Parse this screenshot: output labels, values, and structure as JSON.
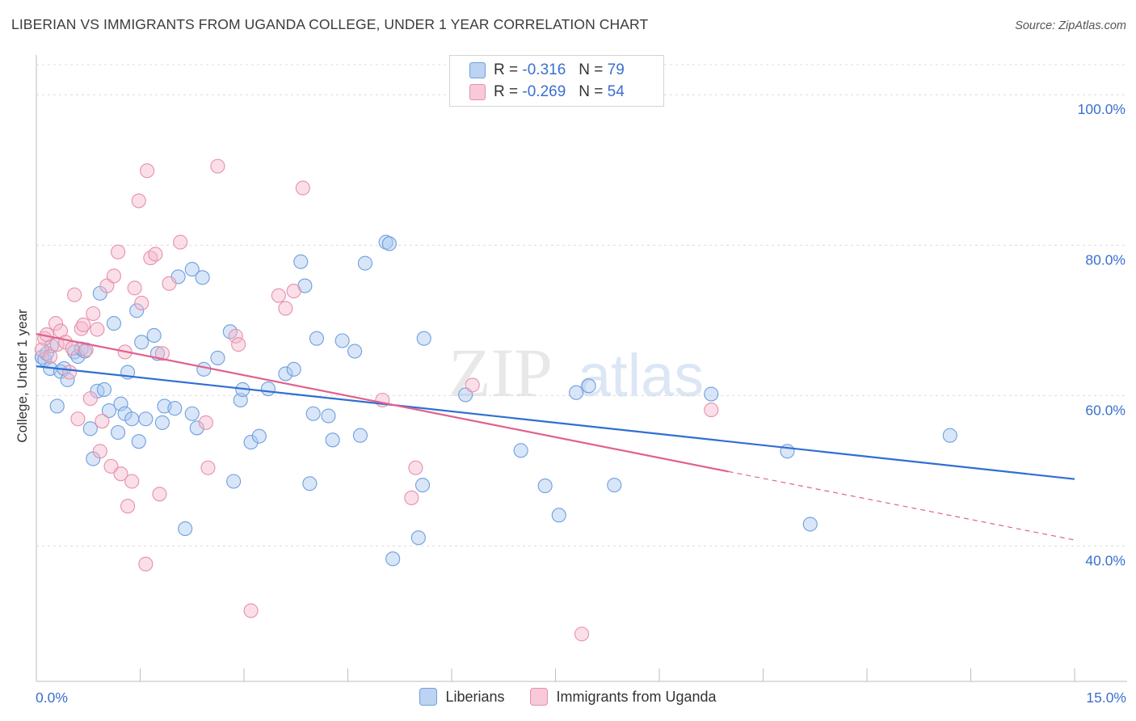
{
  "header": {
    "title": "LIBERIAN VS IMMIGRANTS FROM UGANDA COLLEGE, UNDER 1 YEAR CORRELATION CHART",
    "source": "Source: ZipAtlas.com"
  },
  "legend_top": {
    "rows": [
      {
        "r_label": "R =",
        "r_value": "-0.316",
        "n_label": "N =",
        "n_value": "79"
      },
      {
        "r_label": "R =",
        "r_value": "-0.269",
        "n_label": "N =",
        "n_value": "54"
      }
    ]
  },
  "watermark": {
    "zip": "ZIP",
    "atlas": "atlas"
  },
  "colors": {
    "blue_fill": "#a9c7ef",
    "blue_stroke": "#6e9fde",
    "blue_line": "#2f6fd1",
    "pink_fill": "#f5b7cb",
    "pink_stroke": "#e88fab",
    "pink_line": "#e0628c",
    "axis_text": "#3a6fd0",
    "grid": "#dcdcdc"
  },
  "chart_data": {
    "type": "scatter",
    "title": "LIBERIAN VS IMMIGRANTS FROM UGANDA COLLEGE, UNDER 1 YEAR CORRELATION CHART",
    "xlabel": "",
    "ylabel": "College, Under 1 year",
    "xlim": [
      0,
      15
    ],
    "ylim": [
      22,
      104
    ],
    "x_tick_labels": {
      "min": "0.0%",
      "max": "15.0%"
    },
    "y_ticks": [
      {
        "value": 100,
        "label": "100.0%"
      },
      {
        "value": 80,
        "label": "80.0%"
      },
      {
        "value": 60,
        "label": "60.0%"
      },
      {
        "value": 40,
        "label": "40.0%"
      }
    ],
    "series": [
      {
        "name": "Liberians",
        "color": "blue",
        "trend": {
          "x0": 0.0,
          "y0": 63.9,
          "x1": 15.0,
          "y1": 48.9
        },
        "points": [
          [
            0.08,
            65.1
          ],
          [
            0.12,
            64.8
          ],
          [
            0.15,
            65.6
          ],
          [
            0.2,
            63.6
          ],
          [
            0.22,
            66.6
          ],
          [
            0.3,
            58.6
          ],
          [
            0.35,
            63.2
          ],
          [
            0.4,
            63.6
          ],
          [
            0.45,
            62.1
          ],
          [
            0.55,
            65.8
          ],
          [
            0.6,
            65.2
          ],
          [
            0.65,
            66.2
          ],
          [
            0.7,
            65.9
          ],
          [
            0.78,
            55.6
          ],
          [
            0.82,
            51.6
          ],
          [
            0.88,
            60.6
          ],
          [
            0.92,
            73.6
          ],
          [
            0.98,
            60.8
          ],
          [
            1.05,
            58.0
          ],
          [
            1.12,
            69.6
          ],
          [
            1.18,
            55.1
          ],
          [
            1.22,
            58.9
          ],
          [
            1.28,
            57.6
          ],
          [
            1.32,
            63.1
          ],
          [
            1.38,
            56.9
          ],
          [
            1.45,
            71.3
          ],
          [
            1.48,
            53.9
          ],
          [
            1.52,
            67.1
          ],
          [
            1.58,
            56.9
          ],
          [
            1.7,
            68.0
          ],
          [
            1.75,
            65.6
          ],
          [
            1.82,
            56.4
          ],
          [
            1.85,
            58.6
          ],
          [
            2.0,
            58.3
          ],
          [
            2.05,
            75.8
          ],
          [
            2.15,
            42.3
          ],
          [
            2.25,
            57.6
          ],
          [
            2.25,
            76.8
          ],
          [
            2.32,
            55.7
          ],
          [
            2.4,
            75.7
          ],
          [
            2.42,
            63.5
          ],
          [
            2.62,
            65.0
          ],
          [
            2.8,
            68.5
          ],
          [
            2.85,
            48.6
          ],
          [
            2.95,
            59.4
          ],
          [
            2.98,
            60.8
          ],
          [
            3.1,
            53.8
          ],
          [
            3.22,
            54.6
          ],
          [
            3.35,
            60.9
          ],
          [
            3.6,
            62.9
          ],
          [
            3.72,
            63.5
          ],
          [
            3.82,
            77.8
          ],
          [
            3.88,
            74.6
          ],
          [
            3.95,
            48.3
          ],
          [
            4.0,
            57.6
          ],
          [
            4.05,
            67.6
          ],
          [
            4.22,
            57.3
          ],
          [
            4.28,
            54.1
          ],
          [
            4.42,
            67.3
          ],
          [
            4.6,
            65.9
          ],
          [
            4.68,
            54.7
          ],
          [
            4.75,
            77.6
          ],
          [
            5.05,
            80.4
          ],
          [
            5.1,
            80.2
          ],
          [
            5.15,
            38.3
          ],
          [
            5.52,
            41.1
          ],
          [
            5.58,
            48.1
          ],
          [
            5.6,
            67.6
          ],
          [
            6.2,
            60.1
          ],
          [
            7.0,
            52.7
          ],
          [
            7.35,
            48.0
          ],
          [
            7.55,
            44.1
          ],
          [
            7.8,
            60.4
          ],
          [
            7.98,
            61.3
          ],
          [
            8.35,
            48.1
          ],
          [
            9.75,
            60.2
          ],
          [
            10.85,
            52.6
          ],
          [
            11.18,
            42.9
          ],
          [
            13.2,
            54.7
          ]
        ]
      },
      {
        "name": "Immigrants from Uganda",
        "color": "pink",
        "trend": {
          "x0": 0.0,
          "y0": 68.2,
          "x1": 10.0,
          "y1": 49.9,
          "dash_to_x": 15.0,
          "dash_to_y": 40.8
        },
        "points": [
          [
            0.08,
            66.1
          ],
          [
            0.12,
            67.6
          ],
          [
            0.15,
            68.1
          ],
          [
            0.2,
            65.2
          ],
          [
            0.28,
            69.6
          ],
          [
            0.3,
            66.8
          ],
          [
            0.35,
            68.6
          ],
          [
            0.42,
            67.1
          ],
          [
            0.48,
            63.1
          ],
          [
            0.52,
            66.3
          ],
          [
            0.55,
            73.4
          ],
          [
            0.6,
            56.9
          ],
          [
            0.65,
            68.9
          ],
          [
            0.68,
            69.4
          ],
          [
            0.72,
            66.1
          ],
          [
            0.78,
            59.6
          ],
          [
            0.82,
            70.9
          ],
          [
            0.88,
            68.8
          ],
          [
            0.92,
            52.6
          ],
          [
            0.95,
            56.6
          ],
          [
            1.02,
            74.6
          ],
          [
            1.08,
            50.6
          ],
          [
            1.12,
            75.9
          ],
          [
            1.18,
            79.1
          ],
          [
            1.22,
            49.6
          ],
          [
            1.28,
            65.8
          ],
          [
            1.32,
            45.3
          ],
          [
            1.38,
            48.6
          ],
          [
            1.42,
            74.3
          ],
          [
            1.48,
            85.9
          ],
          [
            1.52,
            72.3
          ],
          [
            1.58,
            37.6
          ],
          [
            1.6,
            89.9
          ],
          [
            1.65,
            78.3
          ],
          [
            1.72,
            78.8
          ],
          [
            1.78,
            46.9
          ],
          [
            1.82,
            65.6
          ],
          [
            1.92,
            74.9
          ],
          [
            2.08,
            80.4
          ],
          [
            2.45,
            56.4
          ],
          [
            2.48,
            50.4
          ],
          [
            2.62,
            90.5
          ],
          [
            2.88,
            67.9
          ],
          [
            2.92,
            66.8
          ],
          [
            3.1,
            31.4
          ],
          [
            3.5,
            73.3
          ],
          [
            3.6,
            71.6
          ],
          [
            3.72,
            73.9
          ],
          [
            3.85,
            87.6
          ],
          [
            5.0,
            59.4
          ],
          [
            5.42,
            46.4
          ],
          [
            5.48,
            50.4
          ],
          [
            6.3,
            61.4
          ],
          [
            7.88,
            28.3
          ],
          [
            9.75,
            58.1
          ]
        ]
      }
    ],
    "legend": [
      "Liberians",
      "Immigrants from Uganda"
    ]
  }
}
